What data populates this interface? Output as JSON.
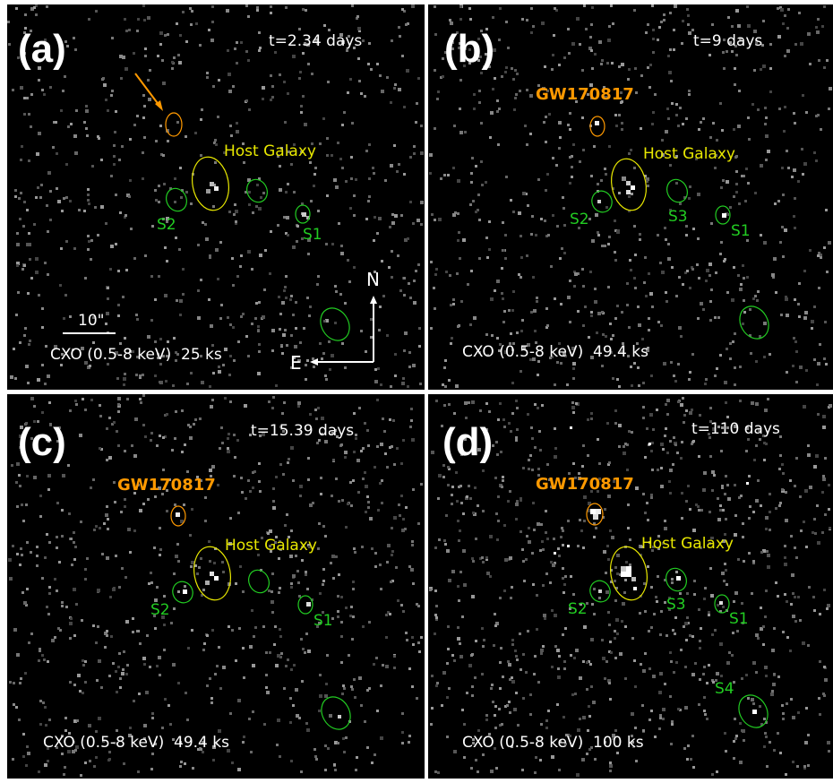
{
  "figure": {
    "colors": {
      "background": "#000000",
      "gw": "#ff9900",
      "host": "#e8e800",
      "source": "#22cc22",
      "text": "#ffffff"
    },
    "panels": [
      {
        "letter": "(a)",
        "time": "t=2.34 days",
        "exposure": "CXO (0.5-8 keV)  25 ks",
        "gw_label": "",
        "host_label": "Host Galaxy",
        "sources": [
          "S2",
          "S1"
        ],
        "scale_bar_label": "10\"",
        "compass": {
          "north": "N",
          "east": "E"
        },
        "has_arrow": true
      },
      {
        "letter": "(b)",
        "time": "t=9 days",
        "exposure": "CXO (0.5-8 keV)  49.4 ks",
        "gw_label": "GW170817",
        "host_label": "Host Galaxy",
        "sources": [
          "S2",
          "S3",
          "S1"
        ],
        "scale_bar_label": "",
        "compass": null,
        "has_arrow": false
      },
      {
        "letter": "(c)",
        "time": "t=15.39 days",
        "exposure": "CXO (0.5-8 keV)  49.4 ks",
        "gw_label": "GW170817",
        "host_label": "Host Galaxy",
        "sources": [
          "S2",
          "S1"
        ],
        "scale_bar_label": "",
        "compass": null,
        "has_arrow": false
      },
      {
        "letter": "(d)",
        "time": "t=110 days",
        "exposure": "CXO (0.5-8 keV)  100 ks",
        "gw_label": "GW170817",
        "host_label": "Host Galaxy",
        "sources": [
          "S2",
          "S3",
          "S1",
          "S4"
        ],
        "scale_bar_label": "",
        "compass": null,
        "has_arrow": false
      }
    ]
  }
}
